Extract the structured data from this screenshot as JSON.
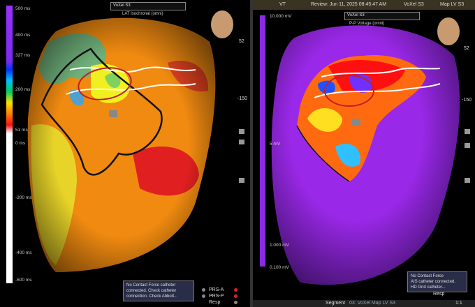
{
  "left_panel": {
    "map_selector": "VoXel S3",
    "map_type": "LAT Isochronal (omni)",
    "scale_labels": [
      "500 ms",
      "400 ms",
      "327 ms",
      "200 ms",
      "51 ms",
      "0 ms",
      "-200 ms",
      "-400 ms",
      "-500 ms"
    ],
    "notice": "No Contact Force catheter connected. Check catheter connection. Check Abbott...",
    "signals": [
      "PRS-A",
      "PRS-P",
      "Resp"
    ]
  },
  "toolbar": {
    "count": "52",
    "depth": "-150"
  },
  "right_panel": {
    "header": {
      "mode": "VT",
      "review": "Review: Jun 11, 2025 08:45:47 AM",
      "map_selector": "VoXel S3",
      "map_name": "Map LV S3"
    },
    "map_selector": "VoXel S3",
    "map_type": "P-P Voltage (omni)",
    "scale_labels": [
      "10.000 mV",
      "5 mV",
      "1.000 mV",
      "0.100 mV"
    ],
    "notice": [
      "No Contact Force",
      "AIS catheter connected.",
      "HD Grid catheter..."
    ],
    "signals": [
      "Resp"
    ]
  },
  "footer": {
    "label": "Segment",
    "segment": "03: VoXel Map LV S3",
    "zoom": "1:1"
  }
}
